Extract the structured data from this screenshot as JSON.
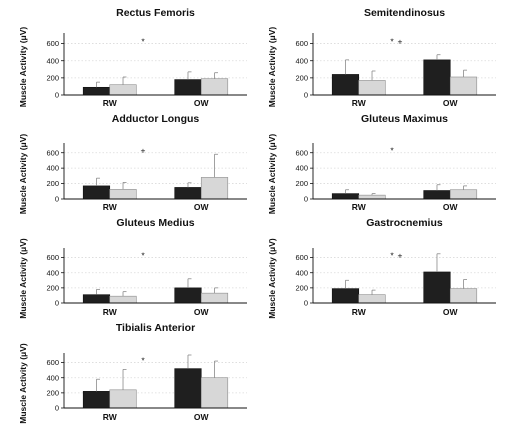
{
  "figure": {
    "colors": {
      "series_1": "#1f1f1f",
      "series_2": "#d7d7d7",
      "error": "#8a8a8a",
      "axis": "#111111",
      "grid": "#d9d9d9"
    }
  },
  "chart_data": [
    {
      "type": "bar",
      "title": "Rectus Femoris",
      "ylabel": "Muscle Activity (μV)",
      "ylim": [
        0,
        700
      ],
      "yticks": [
        0,
        200,
        400,
        600
      ],
      "grid": "horizontal-dotted",
      "categories": [
        "RW",
        "OW"
      ],
      "series": [
        {
          "values": [
            90,
            180
          ],
          "errors": [
            60,
            90
          ]
        },
        {
          "values": [
            120,
            190
          ],
          "errors": [
            90,
            70
          ]
        }
      ],
      "annotations": [
        "*"
      ]
    },
    {
      "type": "bar",
      "title": "Semitendinosus",
      "ylabel": "Muscle Activity (μV)",
      "ylim": [
        0,
        700
      ],
      "yticks": [
        0,
        200,
        400,
        600
      ],
      "grid": "horizontal-dotted",
      "categories": [
        "RW",
        "OW"
      ],
      "series": [
        {
          "values": [
            240,
            410
          ],
          "errors": [
            170,
            60
          ]
        },
        {
          "values": [
            170,
            210
          ],
          "errors": [
            110,
            80
          ]
        }
      ],
      "annotations": [
        "*",
        "+"
      ]
    },
    {
      "type": "bar",
      "title": "Adductor Longus",
      "ylabel": "Muscle Activity (μV)",
      "ylim": [
        0,
        700
      ],
      "yticks": [
        0,
        200,
        400,
        600
      ],
      "grid": "horizontal-dotted",
      "categories": [
        "RW",
        "OW"
      ],
      "series": [
        {
          "values": [
            170,
            150
          ],
          "errors": [
            100,
            60
          ]
        },
        {
          "values": [
            125,
            280
          ],
          "errors": [
            90,
            300
          ]
        }
      ],
      "annotations": [
        "+"
      ]
    },
    {
      "type": "bar",
      "title": "Gluteus Maximus",
      "ylabel": "Muscle Activity (μV)",
      "ylim": [
        0,
        700
      ],
      "yticks": [
        0,
        200,
        400,
        600
      ],
      "grid": "horizontal-dotted",
      "categories": [
        "RW",
        "OW"
      ],
      "series": [
        {
          "values": [
            70,
            110
          ],
          "errors": [
            50,
            75
          ]
        },
        {
          "values": [
            50,
            120
          ],
          "errors": [
            20,
            50
          ]
        }
      ],
      "annotations": [
        "*"
      ]
    },
    {
      "type": "bar",
      "title": "Gluteus Medius",
      "ylabel": "Muscle Activity (μV)",
      "ylim": [
        0,
        700
      ],
      "yticks": [
        0,
        200,
        400,
        600
      ],
      "grid": "horizontal-dotted",
      "categories": [
        "RW",
        "OW"
      ],
      "series": [
        {
          "values": [
            110,
            200
          ],
          "errors": [
            70,
            120
          ]
        },
        {
          "values": [
            90,
            130
          ],
          "errors": [
            60,
            70
          ]
        }
      ],
      "annotations": [
        "*"
      ]
    },
    {
      "type": "bar",
      "title": "Gastrocnemius",
      "ylabel": "Muscle Activity (μV)",
      "ylim": [
        0,
        700
      ],
      "yticks": [
        0,
        200,
        400,
        600
      ],
      "grid": "horizontal-dotted",
      "categories": [
        "RW",
        "OW"
      ],
      "series": [
        {
          "values": [
            190,
            410
          ],
          "errors": [
            110,
            240
          ]
        },
        {
          "values": [
            110,
            190
          ],
          "errors": [
            60,
            120
          ]
        }
      ],
      "annotations": [
        "*",
        "+"
      ]
    },
    {
      "type": "bar",
      "title": "Tibialis Anterior",
      "ylabel": "Muscle Activity (μV)",
      "ylim": [
        0,
        700
      ],
      "yticks": [
        0,
        200,
        400,
        600
      ],
      "grid": "horizontal-dotted",
      "categories": [
        "RW",
        "OW"
      ],
      "series": [
        {
          "values": [
            220,
            520
          ],
          "errors": [
            160,
            180
          ]
        },
        {
          "values": [
            240,
            400
          ],
          "errors": [
            270,
            220
          ]
        }
      ],
      "annotations": [
        "*"
      ]
    }
  ]
}
